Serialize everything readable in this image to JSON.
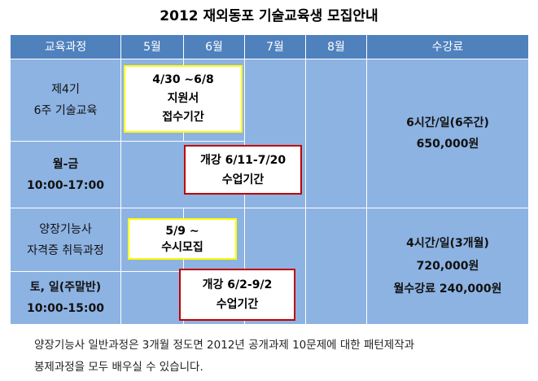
{
  "title": "2012 재외동포 기술교육생 모집안내",
  "table": {
    "headers": [
      "교육과정",
      "5월",
      "6월",
      "7월",
      "8월",
      "수강료"
    ],
    "course1": {
      "name": [
        "제4기",
        "6주 기술교육"
      ],
      "schedule": [
        "월-금",
        "10:00-17:00"
      ],
      "fee": [
        "6시간/일(6주간)",
        "650,000원"
      ]
    },
    "course2": {
      "name": [
        "양장기능사",
        "자격증 취득과정"
      ],
      "schedule": [
        "토, 일(주말반)",
        "10:00-15:00"
      ],
      "fee": [
        "4시간/일(3개월)",
        "720,000원",
        "월수강료 240,000원"
      ]
    }
  },
  "boxes": [
    {
      "lines": [
        "4/30 ∼6/8",
        "지원서",
        "접수기간"
      ]
    },
    {
      "lines": [
        "개강 6/11-7/20",
        "수업기간"
      ]
    },
    {
      "lines": [
        "5/9 ∼",
        "수시모집"
      ]
    },
    {
      "lines": [
        "개강 6/2-9/2",
        "수업기간"
      ]
    }
  ],
  "footer": [
    "양장기능사 일반과정은 3개월 정도면 2012년 공개과제 10문제에 대한 패턴제작과",
    "봉제과정을 모두 배우실 수 있습니다."
  ]
}
